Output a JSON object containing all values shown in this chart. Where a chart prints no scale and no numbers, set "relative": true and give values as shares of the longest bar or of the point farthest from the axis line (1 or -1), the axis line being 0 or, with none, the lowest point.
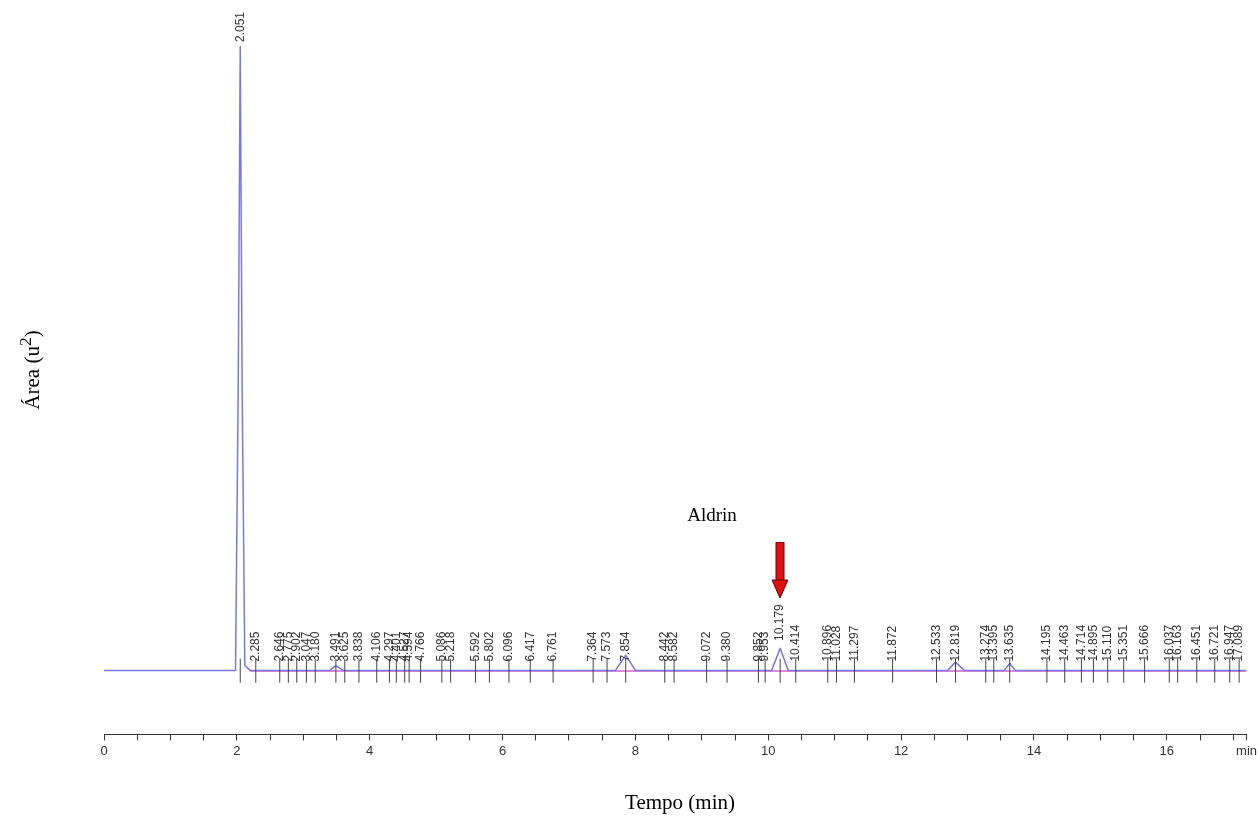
{
  "chart_data": {
    "type": "line",
    "relative": true,
    "xlabel": "Tempo (min)",
    "ylabel": "Área (u$^{2}$)",
    "xlim": [
      0,
      17.2
    ],
    "xticks": [
      0,
      {
        "value": 0.5,
        "label": null
      },
      {
        "value": 1,
        "label": null
      },
      {
        "value": 1.5,
        "label": null
      },
      2,
      {
        "value": 2.5,
        "label": null
      },
      {
        "value": 3,
        "label": null
      },
      {
        "value": 3.5,
        "label": null
      },
      4,
      {
        "value": 4.5,
        "label": null
      },
      {
        "value": 5,
        "label": null
      },
      {
        "value": 5.5,
        "label": null
      },
      6,
      {
        "value": 6.5,
        "label": null
      },
      {
        "value": 7,
        "label": null
      },
      {
        "value": 7.5,
        "label": null
      },
      8,
      {
        "value": 8.5,
        "label": null
      },
      {
        "value": 9,
        "label": null
      },
      {
        "value": 9.5,
        "label": null
      },
      10,
      {
        "value": 10.5,
        "label": null
      },
      {
        "value": 11,
        "label": null
      },
      {
        "value": 11.5,
        "label": null
      },
      12,
      {
        "value": 12.5,
        "label": null
      },
      {
        "value": 13,
        "label": null
      },
      {
        "value": 13.5,
        "label": null
      },
      14,
      {
        "value": 14.5,
        "label": null
      },
      {
        "value": 15,
        "label": null
      },
      {
        "value": 15.5,
        "label": null
      },
      16,
      {
        "value": 16.5,
        "label": null
      },
      {
        "value": 17,
        "label": null
      },
      {
        "value": 17.2,
        "label": "min"
      }
    ],
    "grid": false,
    "legend": false,
    "marker": "none",
    "line_style": "solid",
    "series": [
      {
        "color": "#7878e0",
        "x": [
          0,
          1.98,
          2.02,
          2.051,
          2.08,
          2.12,
          2.2,
          3.4,
          3.49,
          3.6,
          7.7,
          7.854,
          8.0,
          10.05,
          10.179,
          10.3,
          12.7,
          12.819,
          12.95,
          13.55,
          13.635,
          13.72,
          17.2
        ],
        "values": [
          0.093,
          0.093,
          0.5,
          1,
          0.5,
          0.1,
          0.093,
          0.093,
          0.1,
          0.093,
          0.093,
          0.115,
          0.093,
          0.093,
          0.125,
          0.093,
          0.093,
          0.105,
          0.093,
          0.093,
          0.103,
          0.093,
          0.093
        ]
      },
      {
        "color": "#d860d0",
        "x": [
          2.2,
          17.2
        ],
        "values": [
          0.092,
          0.092
        ]
      }
    ],
    "annotations": [
      {
        "text": "2.051",
        "x": 2.051,
        "y": 1
      },
      {
        "text": "2.285",
        "x": 2.285,
        "y": 0.1
      },
      {
        "text": "2.646",
        "x": 2.646,
        "y": 0.1
      },
      {
        "text": "2.775",
        "x": 2.775,
        "y": 0.1
      },
      {
        "text": "2.902",
        "x": 2.902,
        "y": 0.1
      },
      {
        "text": "3.047",
        "x": 3.047,
        "y": 0.1
      },
      {
        "text": "3.180",
        "x": 3.18,
        "y": 0.1
      },
      {
        "text": "3.491",
        "x": 3.491,
        "y": 0.1
      },
      {
        "text": "3.625",
        "x": 3.625,
        "y": 0.1
      },
      {
        "text": "3.838",
        "x": 3.838,
        "y": 0.1
      },
      {
        "text": "4.106",
        "x": 4.106,
        "y": 0.1
      },
      {
        "text": "4.297",
        "x": 4.297,
        "y": 0.1
      },
      {
        "text": "4.401",
        "x": 4.401,
        "y": 0.1
      },
      {
        "text": "4.527",
        "x": 4.527,
        "y": 0.1
      },
      {
        "text": "4.594",
        "x": 4.594,
        "y": 0.1
      },
      {
        "text": "4.766",
        "x": 4.766,
        "y": 0.1
      },
      {
        "text": "5.086",
        "x": 5.086,
        "y": 0.1
      },
      {
        "text": "5.218",
        "x": 5.218,
        "y": 0.1
      },
      {
        "text": "5.592",
        "x": 5.592,
        "y": 0.1
      },
      {
        "text": "5.802",
        "x": 5.802,
        "y": 0.1
      },
      {
        "text": "6.096",
        "x": 6.096,
        "y": 0.1
      },
      {
        "text": "6.417",
        "x": 6.417,
        "y": 0.1
      },
      {
        "text": "6.761",
        "x": 6.761,
        "y": 0.1
      },
      {
        "text": "7.364",
        "x": 7.364,
        "y": 0.1
      },
      {
        "text": "7.573",
        "x": 7.573,
        "y": 0.1
      },
      {
        "text": "7.854",
        "x": 7.854,
        "y": 0.1
      },
      {
        "text": "8.442",
        "x": 8.442,
        "y": 0.1
      },
      {
        "text": "8.582",
        "x": 8.582,
        "y": 0.1
      },
      {
        "text": "9.072",
        "x": 9.072,
        "y": 0.1
      },
      {
        "text": "9.380",
        "x": 9.38,
        "y": 0.1
      },
      {
        "text": "9.852",
        "x": 9.852,
        "y": 0.1
      },
      {
        "text": "9.953",
        "x": 9.953,
        "y": 0.1
      },
      {
        "text": "10.179",
        "x": 10.179,
        "y": 0.13
      },
      {
        "text": "10.414",
        "x": 10.414,
        "y": 0.1
      },
      {
        "text": "10.896",
        "x": 10.896,
        "y": 0.1
      },
      {
        "text": "11.028",
        "x": 11.028,
        "y": 0.1
      },
      {
        "text": "11.297",
        "x": 11.297,
        "y": 0.1
      },
      {
        "text": "11.872",
        "x": 11.872,
        "y": 0.1
      },
      {
        "text": "12.533",
        "x": 12.533,
        "y": 0.1
      },
      {
        "text": "12.819",
        "x": 12.819,
        "y": 0.1
      },
      {
        "text": "13.274",
        "x": 13.274,
        "y": 0.1
      },
      {
        "text": "13.395",
        "x": 13.395,
        "y": 0.1
      },
      {
        "text": "13.635",
        "x": 13.635,
        "y": 0.1
      },
      {
        "text": "14.195",
        "x": 14.195,
        "y": 0.1
      },
      {
        "text": "14.463",
        "x": 14.463,
        "y": 0.1
      },
      {
        "text": "14.714",
        "x": 14.714,
        "y": 0.1
      },
      {
        "text": "14.895",
        "x": 14.895,
        "y": 0.1
      },
      {
        "text": "15.110",
        "x": 15.11,
        "y": 0.1
      },
      {
        "text": "15.351",
        "x": 15.351,
        "y": 0.1
      },
      {
        "text": "15.666",
        "x": 15.666,
        "y": 0.1
      },
      {
        "text": "16.037",
        "x": 16.037,
        "y": 0.1
      },
      {
        "text": "16.163",
        "x": 16.163,
        "y": 0.1
      },
      {
        "text": "16.451",
        "x": 16.451,
        "y": 0.1
      },
      {
        "text": "16.721",
        "x": 16.721,
        "y": 0.1
      },
      {
        "text": "16.947",
        "x": 16.947,
        "y": 0.1
      },
      {
        "text": "17.089",
        "x": 17.089,
        "y": 0.1
      },
      "Aldrin"
    ]
  }
}
